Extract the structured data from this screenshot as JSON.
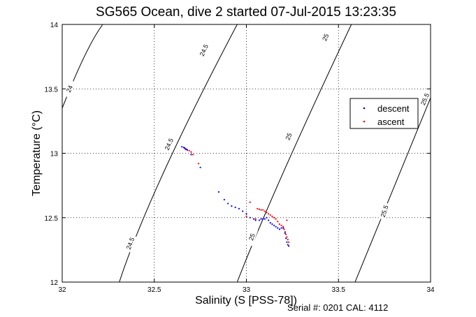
{
  "chart_data": {
    "type": "scatter",
    "title": "SG565 Ocean, dive 2 started 07-Jul-2015 13:23:35",
    "xlabel": "Salinity (S [PSS-78])",
    "ylabel": "Temperature (°C)",
    "xlim": [
      32,
      34
    ],
    "ylim": [
      12,
      14
    ],
    "xticks": [
      "32",
      "32.5",
      "33",
      "33.5",
      "34"
    ],
    "yticks": [
      "12",
      "12.5",
      "13",
      "13.5",
      "14"
    ],
    "grid": true,
    "legend_position": "right",
    "footer": "Serial #: 0201  CAL: 4112",
    "density_contours": [
      {
        "label": "24",
        "color": "#000000",
        "points": [
          [
            32.0,
            13.35
          ],
          [
            32.12,
            13.75
          ],
          [
            32.22,
            14.0
          ]
        ]
      },
      {
        "label": "24.5",
        "color": "#000000",
        "points": [
          [
            32.31,
            12.0
          ],
          [
            32.55,
            12.85
          ],
          [
            32.95,
            14.0
          ]
        ]
      },
      {
        "label": "25",
        "color": "#000000",
        "points": [
          [
            32.95,
            12.0
          ],
          [
            33.2,
            12.85
          ],
          [
            33.57,
            14.0
          ]
        ]
      },
      {
        "label": "25.5",
        "color": "#000000",
        "points": [
          [
            33.59,
            12.0
          ],
          [
            33.82,
            12.8
          ],
          [
            34.0,
            13.43
          ]
        ]
      }
    ],
    "contour_label_positions": [
      {
        "label": "24",
        "x": 32.04,
        "y": 13.5,
        "angle": -66
      },
      {
        "label": "24.5",
        "x": 32.77,
        "y": 13.8,
        "angle": -66
      },
      {
        "label": "24.5",
        "x": 32.58,
        "y": 13.07,
        "angle": -66
      },
      {
        "label": "24.5",
        "x": 32.37,
        "y": 12.3,
        "angle": -70
      },
      {
        "label": "25",
        "x": 33.43,
        "y": 13.9,
        "angle": -66
      },
      {
        "label": "25",
        "x": 33.23,
        "y": 13.13,
        "angle": -67
      },
      {
        "label": "25",
        "x": 33.03,
        "y": 12.35,
        "angle": -70
      },
      {
        "label": "25.5",
        "x": 33.97,
        "y": 13.42,
        "angle": -67
      },
      {
        "label": "25.5",
        "x": 33.75,
        "y": 12.55,
        "angle": -72
      }
    ],
    "series": [
      {
        "name": "descent",
        "color": "#0000ff",
        "points": [
          [
            32.65,
            13.05
          ],
          [
            32.66,
            13.045
          ],
          [
            32.665,
            13.04
          ],
          [
            32.67,
            13.035
          ],
          [
            32.675,
            13.03
          ],
          [
            32.68,
            13.025
          ],
          [
            32.7,
            12.99
          ],
          [
            32.75,
            12.89
          ],
          [
            32.85,
            12.7
          ],
          [
            32.88,
            12.64
          ],
          [
            32.9,
            12.61
          ],
          [
            32.92,
            12.59
          ],
          [
            32.94,
            12.58
          ],
          [
            32.96,
            12.57
          ],
          [
            32.98,
            12.55
          ],
          [
            33.0,
            12.53
          ],
          [
            33.02,
            12.5
          ],
          [
            33.04,
            12.49
          ],
          [
            33.05,
            12.48
          ],
          [
            33.07,
            12.48
          ],
          [
            33.08,
            12.49
          ],
          [
            33.09,
            12.49
          ],
          [
            33.1,
            12.49
          ],
          [
            33.11,
            12.5
          ],
          [
            33.12,
            12.48
          ],
          [
            33.13,
            12.46
          ],
          [
            33.14,
            12.45
          ],
          [
            33.15,
            12.44
          ],
          [
            33.16,
            12.43
          ],
          [
            33.17,
            12.42
          ],
          [
            33.18,
            12.41
          ],
          [
            33.19,
            12.42
          ],
          [
            33.2,
            12.42
          ],
          [
            33.21,
            12.38
          ],
          [
            33.215,
            12.34
          ],
          [
            33.22,
            12.31
          ],
          [
            33.225,
            12.29
          ],
          [
            33.23,
            12.28
          ]
        ]
      },
      {
        "name": "ascent",
        "color": "#ff0000",
        "points": [
          [
            32.67,
            13.03
          ],
          [
            32.69,
            13.02
          ],
          [
            32.7,
            13.01
          ],
          [
            32.71,
            12.99
          ],
          [
            32.74,
            12.92
          ],
          [
            33.02,
            12.62
          ],
          [
            33.06,
            12.57
          ],
          [
            33.07,
            12.565
          ],
          [
            33.08,
            12.56
          ],
          [
            33.09,
            12.56
          ],
          [
            33.1,
            12.55
          ],
          [
            33.11,
            12.54
          ],
          [
            33.12,
            12.53
          ],
          [
            33.13,
            12.52
          ],
          [
            33.14,
            12.51
          ],
          [
            33.15,
            12.5
          ],
          [
            33.16,
            12.49
          ],
          [
            33.17,
            12.47
          ],
          [
            33.18,
            12.45
          ],
          [
            33.19,
            12.44
          ],
          [
            33.2,
            12.43
          ],
          [
            33.205,
            12.41
          ],
          [
            33.21,
            12.39
          ],
          [
            33.215,
            12.37
          ],
          [
            33.22,
            12.35
          ],
          [
            33.225,
            12.33
          ],
          [
            33.23,
            12.31
          ],
          [
            33.22,
            12.48
          ],
          [
            33.05,
            12.49
          ],
          [
            33.0,
            12.51
          ]
        ]
      }
    ]
  }
}
